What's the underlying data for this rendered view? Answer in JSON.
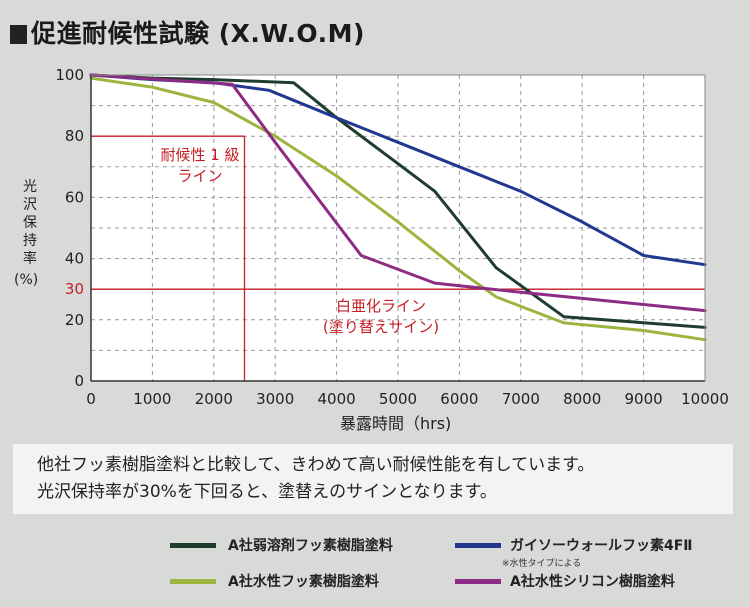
{
  "title": "促進耐候性試験 (X.W.O.M)",
  "description": [
    "他社フッ素樹脂塗料と比較して、きわめて高い耐候性能を有しています。",
    "光沢保持率が30%を下回ると、塗替えのサインとなります。"
  ],
  "legend_note": "※水性タイプによる",
  "chart_data": {
    "type": "line",
    "title": "",
    "xlabel": "暴露時間（hrs)",
    "ylabel": "光沢保持率",
    "ylabel_unit": "(%)",
    "xlim": [
      0,
      10000
    ],
    "ylim": [
      0,
      100
    ],
    "xticks": [
      "0",
      "1000",
      "2000",
      "3000",
      "4000",
      "5000",
      "6000",
      "7000",
      "8000",
      "9000",
      "10000"
    ],
    "yticks": [
      "0",
      "20",
      "40",
      "60",
      "80",
      "100"
    ],
    "grid": true,
    "legend_position": "bottom",
    "series": [
      {
        "name": "A社弱溶剤フッ素樹脂塗料",
        "color": "#1e3d2c",
        "x": [
          0,
          1000,
          2000,
          3300,
          4000,
          5000,
          5600,
          6600,
          7700,
          10000
        ],
        "y": [
          100,
          99,
          98.5,
          97.5,
          86,
          71,
          62,
          37,
          21,
          17.5
        ]
      },
      {
        "name": "ガイソーウォールフッ素4FⅡ",
        "color": "#22388f",
        "x": [
          0,
          1000,
          2000,
          2900,
          4000,
          5000,
          6000,
          7000,
          8000,
          9000,
          10000
        ],
        "y": [
          100,
          98.5,
          97.5,
          95,
          86,
          78,
          70,
          62,
          52,
          41,
          38
        ]
      },
      {
        "name": "A社水性フッ素樹脂塗料",
        "color": "#9cb53f",
        "x": [
          0,
          1000,
          2000,
          3000,
          4000,
          5000,
          6000,
          6600,
          7700,
          9000,
          10000
        ],
        "y": [
          99,
          96,
          91,
          80,
          67,
          52,
          36,
          27.5,
          19,
          16.5,
          13.5
        ]
      },
      {
        "name": "A社水性シリコン樹脂塗料",
        "color": "#8e2c85",
        "x": [
          0,
          2300,
          3000,
          4400,
          5600,
          7000,
          8000,
          9000,
          10000
        ],
        "y": [
          100,
          97,
          78,
          41,
          32,
          29,
          27,
          25,
          23
        ]
      }
    ],
    "annotations": {
      "grade_line_label": [
        "耐候性 1 級",
        "ライン"
      ],
      "grade_line_y": 80,
      "grade_line_x": 2500,
      "threshold_label": [
        "白亜化ライン",
        "(塗り替えサイン)"
      ],
      "threshold_value": 30,
      "threshold_tick": "30",
      "color": "#c41e24"
    }
  }
}
